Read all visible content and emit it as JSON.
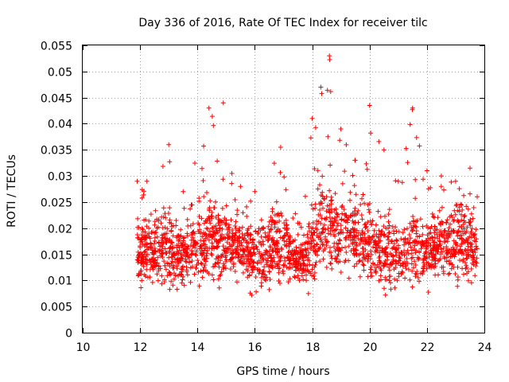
{
  "chart_data": {
    "type": "scatter",
    "title": "Day 336 of 2016, Rate Of TEC Index for receiver tilc",
    "xlabel": "GPS time / hours",
    "ylabel": "ROTI / TECUs",
    "xlim": [
      10,
      24
    ],
    "ylim": [
      0,
      0.055
    ],
    "x_ticks": [
      10,
      12,
      14,
      16,
      18,
      20,
      22,
      24
    ],
    "x_tick_labels": [
      "10",
      "12",
      "14",
      "16",
      "18",
      "20",
      "22",
      "24"
    ],
    "y_ticks": [
      0,
      0.005,
      0.01,
      0.015,
      0.02,
      0.025,
      0.03,
      0.035,
      0.04,
      0.045,
      0.05,
      0.055
    ],
    "y_tick_labels": [
      "0",
      "0.005",
      "0.01",
      "0.015",
      "0.02",
      "0.025",
      "0.03",
      "0.035",
      "0.04",
      "0.045",
      "0.05",
      "0.055"
    ],
    "grid": true,
    "marker": "+",
    "series_color": "#ff0000",
    "series": [
      {
        "name": "ROTI",
        "x_range": [
          11.9,
          23.75
        ],
        "profile": [
          {
            "x": 11.9,
            "median": 0.016,
            "spread": 0.004,
            "max": 0.029
          },
          {
            "x": 13.0,
            "median": 0.016,
            "spread": 0.005,
            "max": 0.036
          },
          {
            "x": 13.5,
            "median": 0.015,
            "spread": 0.004,
            "max": 0.027
          },
          {
            "x": 14.4,
            "median": 0.018,
            "spread": 0.005,
            "max": 0.043
          },
          {
            "x": 14.9,
            "median": 0.018,
            "spread": 0.005,
            "max": 0.044
          },
          {
            "x": 15.5,
            "median": 0.016,
            "spread": 0.004,
            "max": 0.028
          },
          {
            "x": 16.0,
            "median": 0.014,
            "spread": 0.004,
            "max": 0.027
          },
          {
            "x": 16.9,
            "median": 0.017,
            "spread": 0.005,
            "max": 0.0355
          },
          {
            "x": 17.5,
            "median": 0.013,
            "spread": 0.002,
            "max": 0.021
          },
          {
            "x": 18.0,
            "median": 0.016,
            "spread": 0.005,
            "max": 0.041
          },
          {
            "x": 18.3,
            "median": 0.02,
            "spread": 0.006,
            "max": 0.047
          },
          {
            "x": 18.6,
            "median": 0.021,
            "spread": 0.006,
            "max": 0.053
          },
          {
            "x": 19.0,
            "median": 0.019,
            "spread": 0.005,
            "max": 0.039
          },
          {
            "x": 19.5,
            "median": 0.018,
            "spread": 0.005,
            "max": 0.033
          },
          {
            "x": 20.0,
            "median": 0.017,
            "spread": 0.005,
            "max": 0.0435
          },
          {
            "x": 20.5,
            "median": 0.016,
            "spread": 0.005,
            "max": 0.035
          },
          {
            "x": 21.0,
            "median": 0.015,
            "spread": 0.004,
            "max": 0.029
          },
          {
            "x": 21.5,
            "median": 0.016,
            "spread": 0.005,
            "max": 0.043
          },
          {
            "x": 22.0,
            "median": 0.016,
            "spread": 0.004,
            "max": 0.031
          },
          {
            "x": 22.5,
            "median": 0.017,
            "spread": 0.004,
            "max": 0.03
          },
          {
            "x": 23.0,
            "median": 0.017,
            "spread": 0.005,
            "max": 0.029
          },
          {
            "x": 23.5,
            "median": 0.017,
            "spread": 0.005,
            "max": 0.0315
          },
          {
            "x": 23.75,
            "median": 0.016,
            "spread": 0.004,
            "max": 0.026
          }
        ],
        "point_count": 2200,
        "min_value": 0.0045
      }
    ]
  }
}
